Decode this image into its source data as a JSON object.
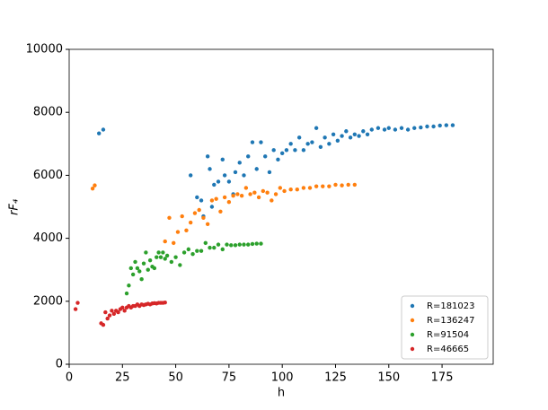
{
  "chart_data": {
    "type": "scatter",
    "xlabel": "h",
    "ylabel": "rF₄",
    "xlim": [
      0,
      199
    ],
    "ylim": [
      0,
      10000
    ],
    "xticks": [
      0,
      25,
      50,
      75,
      100,
      125,
      150,
      175
    ],
    "yticks": [
      0,
      2000,
      4000,
      6000,
      8000,
      10000
    ],
    "legend": "lower right",
    "series": [
      {
        "name": "R=181023",
        "color": "#1f77b4",
        "x": [
          14,
          16,
          57,
          60,
          62,
          63,
          65,
          66,
          67,
          68,
          70,
          72,
          73,
          75,
          77,
          78,
          80,
          82,
          84,
          86,
          88,
          90,
          92,
          94,
          96,
          98,
          100,
          102,
          104,
          106,
          108,
          110,
          112,
          114,
          116,
          118,
          120,
          122,
          124,
          126,
          128,
          130,
          132,
          134,
          136,
          138,
          140,
          142,
          145,
          148,
          150,
          153,
          156,
          159,
          162,
          165,
          168,
          171,
          174,
          177,
          180
        ],
        "values": [
          7330,
          7450,
          6000,
          5300,
          5200,
          4700,
          6600,
          6200,
          5000,
          5700,
          5800,
          6500,
          6000,
          5800,
          5400,
          6100,
          6400,
          6000,
          6600,
          7050,
          6200,
          7050,
          6600,
          6100,
          6800,
          6500,
          6700,
          6800,
          7000,
          6800,
          7200,
          6800,
          7000,
          7050,
          7500,
          6900,
          7200,
          7000,
          7300,
          7100,
          7250,
          7400,
          7200,
          7300,
          7250,
          7400,
          7300,
          7450,
          7500,
          7450,
          7500,
          7450,
          7500,
          7450,
          7500,
          7520,
          7550,
          7550,
          7580,
          7590,
          7590
        ]
      },
      {
        "name": "R=136247",
        "color": "#ff7f0e",
        "x": [
          11,
          12,
          45,
          47,
          49,
          51,
          53,
          55,
          57,
          59,
          61,
          63,
          65,
          67,
          69,
          71,
          73,
          75,
          77,
          79,
          81,
          83,
          85,
          87,
          89,
          91,
          93,
          95,
          97,
          99,
          101,
          104,
          107,
          110,
          113,
          116,
          119,
          122,
          125,
          128,
          131,
          134
        ],
        "values": [
          5580,
          5680,
          3900,
          4650,
          3850,
          4200,
          4700,
          4250,
          4500,
          4800,
          4900,
          4650,
          4450,
          5200,
          5250,
          4850,
          5300,
          5150,
          5350,
          5400,
          5350,
          5600,
          5400,
          5450,
          5300,
          5500,
          5450,
          5200,
          5400,
          5600,
          5500,
          5550,
          5550,
          5600,
          5600,
          5650,
          5650,
          5650,
          5700,
          5680,
          5700,
          5700
        ]
      },
      {
        "name": "R=91504",
        "color": "#2ca02c",
        "x": [
          27,
          28,
          29,
          30,
          31,
          32,
          33,
          34,
          35,
          36,
          37,
          38,
          39,
          40,
          41,
          42,
          43,
          44,
          45,
          46,
          48,
          50,
          52,
          54,
          56,
          58,
          60,
          62,
          64,
          66,
          68,
          70,
          72,
          74,
          76,
          78,
          80,
          82,
          84,
          86,
          88,
          90
        ],
        "values": [
          2250,
          2500,
          3050,
          2850,
          3250,
          3050,
          2950,
          2700,
          3200,
          3550,
          3000,
          3300,
          3100,
          3050,
          3400,
          3550,
          3400,
          3550,
          3350,
          3450,
          3250,
          3400,
          3150,
          3550,
          3650,
          3500,
          3600,
          3600,
          3850,
          3700,
          3700,
          3800,
          3650,
          3800,
          3780,
          3780,
          3800,
          3800,
          3800,
          3820,
          3830,
          3830
        ]
      },
      {
        "name": "R=46665",
        "color": "#d62728",
        "x": [
          3,
          4,
          15,
          16,
          17,
          18,
          19,
          20,
          21,
          22,
          23,
          24,
          25,
          26,
          27,
          28,
          29,
          30,
          31,
          32,
          33,
          34,
          35,
          36,
          37,
          38,
          39,
          40,
          41,
          42,
          43,
          44,
          45
        ],
        "values": [
          1750,
          1950,
          1300,
          1250,
          1650,
          1450,
          1550,
          1700,
          1600,
          1700,
          1650,
          1750,
          1800,
          1700,
          1800,
          1850,
          1800,
          1850,
          1850,
          1900,
          1850,
          1900,
          1880,
          1900,
          1920,
          1900,
          1930,
          1940,
          1930,
          1950,
          1950,
          1950,
          1960
        ]
      }
    ]
  }
}
